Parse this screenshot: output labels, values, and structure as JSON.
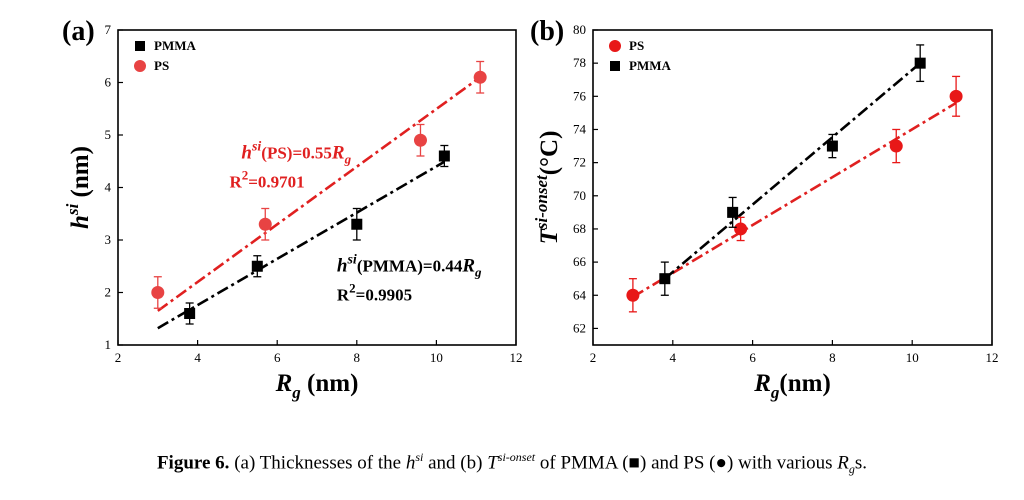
{
  "chart_data": [
    {
      "type": "scatter",
      "panel": "(a)",
      "ylabel": "h^si (nm)",
      "ylabel_base": "h",
      "ylabel_sup": "si",
      "ylabel_unit": "(nm)",
      "xlabel": "R_g (nm)",
      "xlabel_base": "R",
      "xlabel_sub": "g",
      "xlabel_unit": "(nm)",
      "xlim": [
        2,
        12
      ],
      "ylim": [
        1,
        7
      ],
      "xticks": [
        2,
        4,
        6,
        8,
        10,
        12
      ],
      "yticks": [
        1,
        2,
        3,
        4,
        5,
        6,
        7
      ],
      "grid": false,
      "legend_position": "top-left",
      "series": [
        {
          "name": "PMMA",
          "marker": "square",
          "color": "#000000",
          "x": [
            3.8,
            5.5,
            8.0,
            10.2
          ],
          "y": [
            1.6,
            2.5,
            3.3,
            4.6
          ],
          "err": [
            0.2,
            0.2,
            0.3,
            0.2
          ],
          "fit": {
            "x": [
              3.0,
              10.2
            ],
            "y": [
              1.32,
              4.49
            ],
            "color": "#000000"
          }
        },
        {
          "name": "PS",
          "marker": "circle",
          "color": "#e84343",
          "x": [
            3.0,
            5.7,
            9.6,
            11.1
          ],
          "y": [
            2.0,
            3.3,
            4.9,
            6.1
          ],
          "err": [
            0.3,
            0.3,
            0.3,
            0.3
          ],
          "fit": {
            "x": [
              3.0,
              11.1
            ],
            "y": [
              1.65,
              6.1
            ],
            "color": "#e02020"
          }
        }
      ],
      "annotations": [
        {
          "base": "h",
          "sup": "si",
          "text": "(PS)=0.55",
          "tail": "R",
          "sub": "g",
          "color": "#e02020",
          "at": [
            5.1,
            4.55
          ]
        },
        {
          "text": "R",
          "sup": "2",
          "tail": "=0.9701",
          "color": "#e02020",
          "at": [
            4.8,
            4.0
          ]
        },
        {
          "base": "h",
          "sup": "si",
          "text": "(PMMA)=0.44",
          "tail": "R",
          "sub": "g",
          "color": "#000000",
          "at": [
            7.5,
            2.4
          ]
        },
        {
          "text": "R",
          "sup": "2",
          "tail": "=0.9905",
          "color": "#000000",
          "at": [
            7.5,
            1.85
          ]
        }
      ]
    },
    {
      "type": "scatter",
      "panel": "(b)",
      "ylabel": "T^si-onset(°C)",
      "ylabel_base": "T",
      "ylabel_sup": "si-onset",
      "ylabel_unit": "(°C)",
      "xlabel": "R_g(nm)",
      "xlabel_base": "R",
      "xlabel_sub": "g",
      "xlabel_unit": "(nm)",
      "xlim": [
        2,
        12
      ],
      "ylim": [
        61,
        80
      ],
      "xticks": [
        2,
        4,
        6,
        8,
        10,
        12
      ],
      "yticks": [
        62,
        64,
        66,
        68,
        70,
        72,
        74,
        76,
        78,
        80
      ],
      "grid": false,
      "legend_position": "top-left",
      "series": [
        {
          "name": "PS",
          "marker": "circle",
          "color": "#e81818",
          "x": [
            3.0,
            5.7,
            9.6,
            11.1
          ],
          "y": [
            64,
            68,
            73,
            76
          ],
          "err": [
            1.0,
            0.7,
            1.0,
            1.2
          ],
          "fit": {
            "x": [
              3.0,
              11.1
            ],
            "y": [
              63.9,
              75.6
            ],
            "color": "#e02020"
          }
        },
        {
          "name": "PMMA",
          "marker": "square",
          "color": "#000000",
          "x": [
            3.8,
            5.5,
            8.0,
            10.2
          ],
          "y": [
            65,
            69,
            73,
            78
          ],
          "err": [
            1.0,
            0.9,
            0.7,
            1.1
          ],
          "fit": {
            "x": [
              3.8,
              10.2
            ],
            "y": [
              65.0,
              78.0
            ],
            "color": "#000000"
          }
        }
      ]
    }
  ],
  "caption": {
    "label": "Figure 6.",
    "part1": " (a) Thicknesses of the ",
    "h_base": "h",
    "h_sup": "si",
    "part2": " and (b) ",
    "t_base": "T",
    "t_sup": "si-onset",
    "part3": " of PMMA (■) and PS (●) with various ",
    "r_base": "R",
    "r_sub": "g",
    "part4": "s."
  }
}
